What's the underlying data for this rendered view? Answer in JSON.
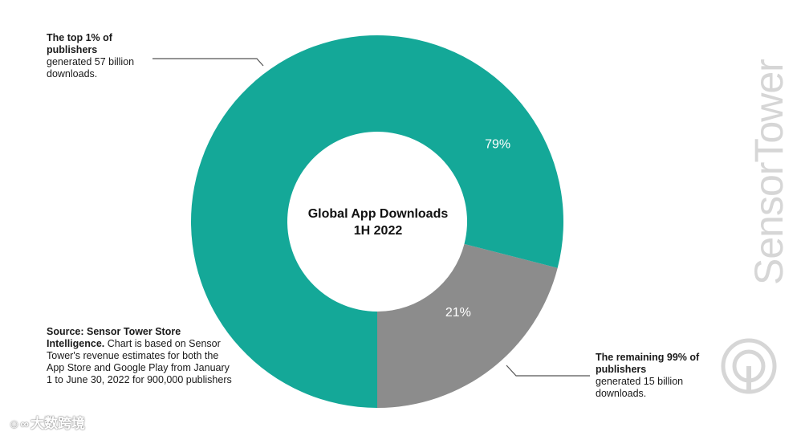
{
  "chart_data": {
    "type": "pie",
    "donut": true,
    "title": "Global App Downloads",
    "subtitle": "1H 2022",
    "categories": [
      "The top 1% of publishers",
      "The remaining 99% of publishers"
    ],
    "values": [
      79,
      21
    ],
    "value_labels": [
      "79%",
      "21%"
    ],
    "colors": [
      "#14a898",
      "#8c8c8c"
    ],
    "annotations": {
      "top": {
        "bold": "The top 1% of publishers",
        "text": "generated 57 billion downloads."
      },
      "bottom": {
        "bold": "The remaining 99% of publishers",
        "text": "generated 15 billion downloads."
      }
    }
  },
  "source": {
    "bold": "Source: Sensor Tower Store Intelligence.",
    "text": "Chart is based on Sensor Tower's revenue estimates for both the App Store and Google Play from January 1 to June 30, 2022 for 900,000 publishers"
  },
  "brand": "SensorTower",
  "watermark": "大数跨境",
  "colors": {
    "accent": "#14a898",
    "secondary": "#8c8c8c",
    "brand_gray": "#d6d6d6"
  }
}
